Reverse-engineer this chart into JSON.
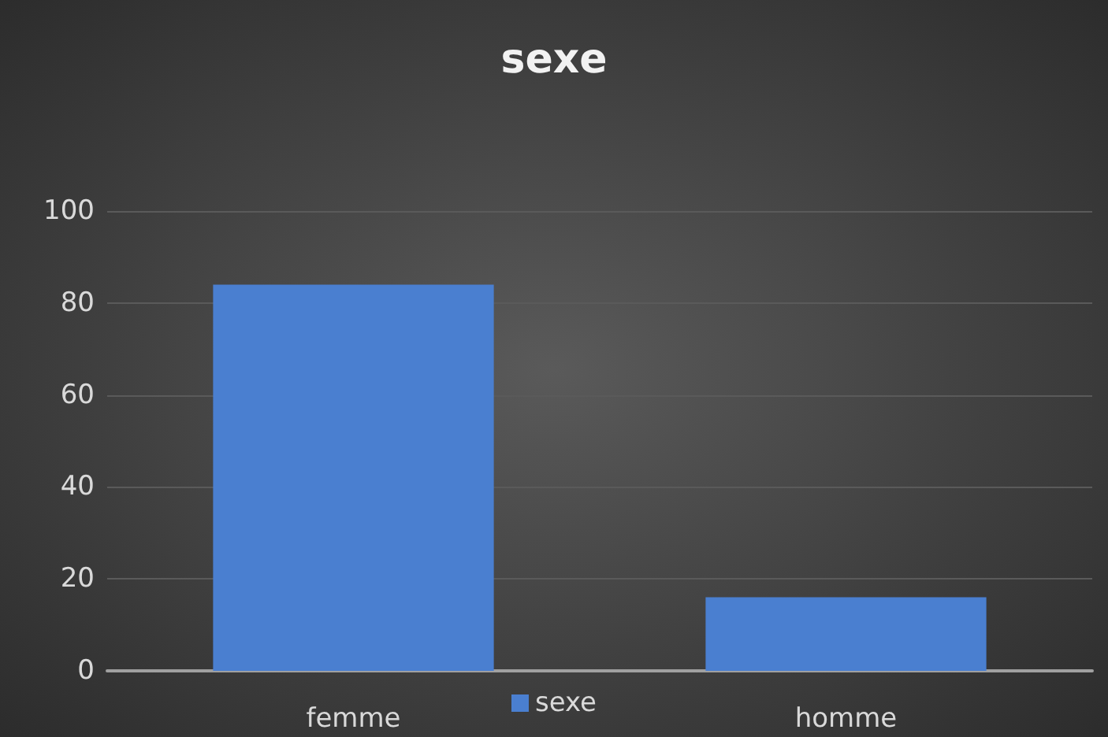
{
  "chart_data": {
    "type": "bar",
    "title": "sexe",
    "categories": [
      "femme",
      "homme"
    ],
    "series": [
      {
        "name": "sexe",
        "color": "#4a7fd0",
        "values": [
          84,
          16
        ]
      }
    ],
    "ylim": [
      0,
      100
    ],
    "yticks": [
      0,
      20,
      40,
      60,
      80,
      100
    ],
    "grid": "y",
    "legend": "bottom"
  }
}
